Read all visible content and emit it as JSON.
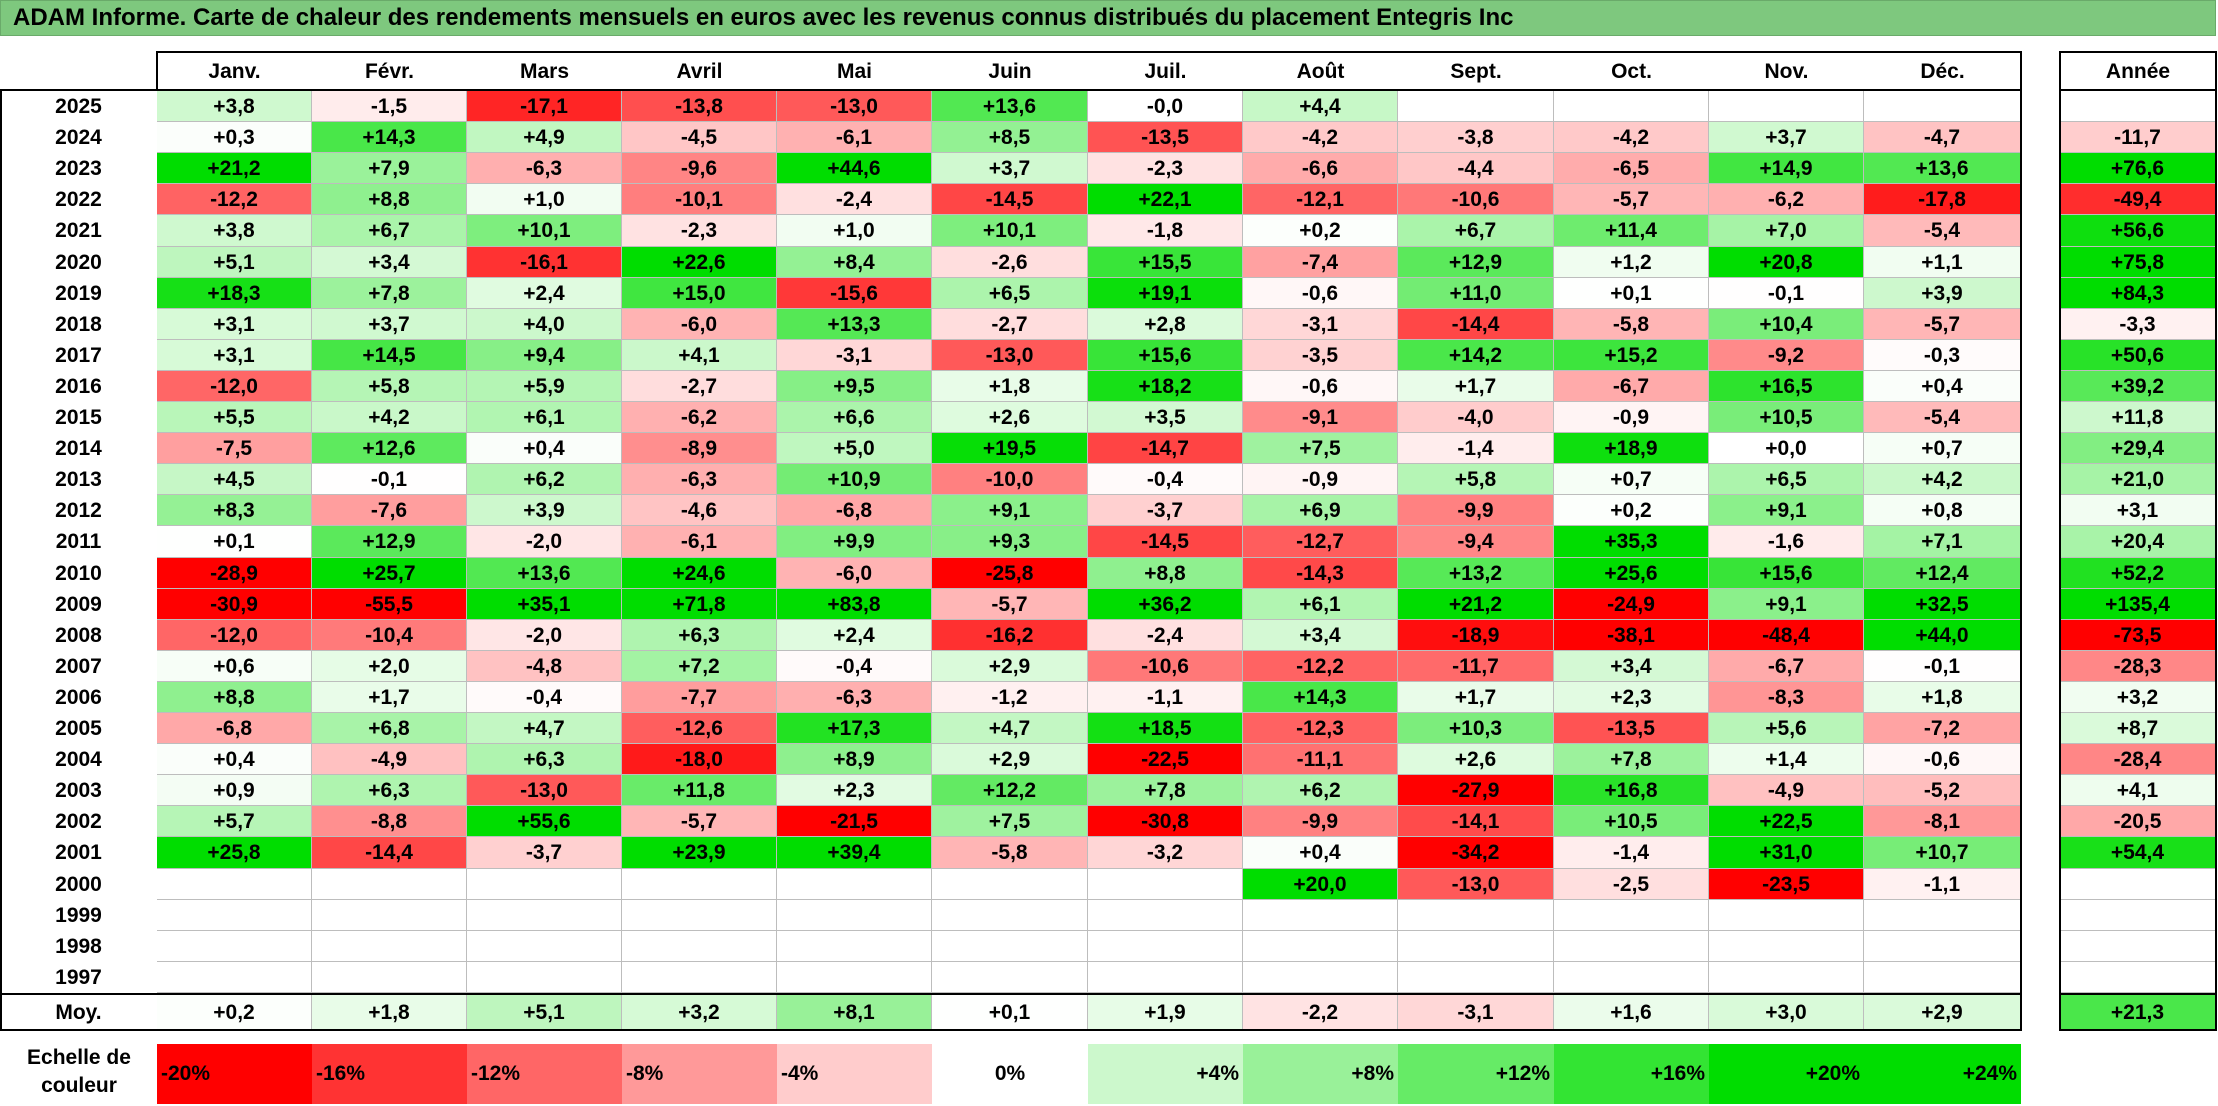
{
  "title": "ADAM Informe. Carte de chaleur des rendements mensuels en euros avec les revenus connus distribués du placement Entegris Inc",
  "chart_data": {
    "type": "heatmap",
    "title": "ADAM Informe. Carte de chaleur des rendements mensuels en euros avec les revenus connus distribués du placement Entegris Inc",
    "columns": [
      "Janv.",
      "Févr.",
      "Mars",
      "Avril",
      "Mai",
      "Juin",
      "Juil.",
      "Août",
      "Sept.",
      "Oct.",
      "Nov.",
      "Déc."
    ],
    "year_header": "Année",
    "rows": [
      {
        "year": "2025",
        "values": [
          "+3,8",
          "-1,5",
          "-17,1",
          "-13,8",
          "-13,0",
          "+13,6",
          "-0,0",
          "+4,4",
          "",
          "",
          "",
          ""
        ],
        "annual": ""
      },
      {
        "year": "2024",
        "values": [
          "+0,3",
          "+14,3",
          "+4,9",
          "-4,5",
          "-6,1",
          "+8,5",
          "-13,5",
          "-4,2",
          "-3,8",
          "-4,2",
          "+3,7",
          "-4,7"
        ],
        "annual": "-11,7"
      },
      {
        "year": "2023",
        "values": [
          "+21,2",
          "+7,9",
          "-6,3",
          "-9,6",
          "+44,6",
          "+3,7",
          "-2,3",
          "-6,6",
          "-4,4",
          "-6,5",
          "+14,9",
          "+13,6"
        ],
        "annual": "+76,6"
      },
      {
        "year": "2022",
        "values": [
          "-12,2",
          "+8,8",
          "+1,0",
          "-10,1",
          "-2,4",
          "-14,5",
          "+22,1",
          "-12,1",
          "-10,6",
          "-5,7",
          "-6,2",
          "-17,8"
        ],
        "annual": "-49,4"
      },
      {
        "year": "2021",
        "values": [
          "+3,8",
          "+6,7",
          "+10,1",
          "-2,3",
          "+1,0",
          "+10,1",
          "-1,8",
          "+0,2",
          "+6,7",
          "+11,4",
          "+7,0",
          "-5,4"
        ],
        "annual": "+56,6"
      },
      {
        "year": "2020",
        "values": [
          "+5,1",
          "+3,4",
          "-16,1",
          "+22,6",
          "+8,4",
          "-2,6",
          "+15,5",
          "-7,4",
          "+12,9",
          "+1,2",
          "+20,8",
          "+1,1"
        ],
        "annual": "+75,8"
      },
      {
        "year": "2019",
        "values": [
          "+18,3",
          "+7,8",
          "+2,4",
          "+15,0",
          "-15,6",
          "+6,5",
          "+19,1",
          "-0,6",
          "+11,0",
          "+0,1",
          "-0,1",
          "+3,9"
        ],
        "annual": "+84,3"
      },
      {
        "year": "2018",
        "values": [
          "+3,1",
          "+3,7",
          "+4,0",
          "-6,0",
          "+13,3",
          "-2,7",
          "+2,8",
          "-3,1",
          "-14,4",
          "-5,8",
          "+10,4",
          "-5,7"
        ],
        "annual": "-3,3"
      },
      {
        "year": "2017",
        "values": [
          "+3,1",
          "+14,5",
          "+9,4",
          "+4,1",
          "-3,1",
          "-13,0",
          "+15,6",
          "-3,5",
          "+14,2",
          "+15,2",
          "-9,2",
          "-0,3"
        ],
        "annual": "+50,6"
      },
      {
        "year": "2016",
        "values": [
          "-12,0",
          "+5,8",
          "+5,9",
          "-2,7",
          "+9,5",
          "+1,8",
          "+18,2",
          "-0,6",
          "+1,7",
          "-6,7",
          "+16,5",
          "+0,4"
        ],
        "annual": "+39,2"
      },
      {
        "year": "2015",
        "values": [
          "+5,5",
          "+4,2",
          "+6,1",
          "-6,2",
          "+6,6",
          "+2,6",
          "+3,5",
          "-9,1",
          "-4,0",
          "-0,9",
          "+10,5",
          "-5,4"
        ],
        "annual": "+11,8"
      },
      {
        "year": "2014",
        "values": [
          "-7,5",
          "+12,6",
          "+0,4",
          "-8,9",
          "+5,0",
          "+19,5",
          "-14,7",
          "+7,5",
          "-1,4",
          "+18,9",
          "+0,0",
          "+0,7"
        ],
        "annual": "+29,4"
      },
      {
        "year": "2013",
        "values": [
          "+4,5",
          "-0,1",
          "+6,2",
          "-6,3",
          "+10,9",
          "-10,0",
          "-0,4",
          "-0,9",
          "+5,8",
          "+0,7",
          "+6,5",
          "+4,2"
        ],
        "annual": "+21,0"
      },
      {
        "year": "2012",
        "values": [
          "+8,3",
          "-7,6",
          "+3,9",
          "-4,6",
          "-6,8",
          "+9,1",
          "-3,7",
          "+6,9",
          "-9,9",
          "+0,2",
          "+9,1",
          "+0,8"
        ],
        "annual": "+3,1"
      },
      {
        "year": "2011",
        "values": [
          "+0,1",
          "+12,9",
          "-2,0",
          "-6,1",
          "+9,9",
          "+9,3",
          "-14,5",
          "-12,7",
          "-9,4",
          "+35,3",
          "-1,6",
          "+7,1"
        ],
        "annual": "+20,4"
      },
      {
        "year": "2010",
        "values": [
          "-28,9",
          "+25,7",
          "+13,6",
          "+24,6",
          "-6,0",
          "-25,8",
          "+8,8",
          "-14,3",
          "+13,2",
          "+25,6",
          "+15,6",
          "+12,4"
        ],
        "annual": "+52,2"
      },
      {
        "year": "2009",
        "values": [
          "-30,9",
          "-55,5",
          "+35,1",
          "+71,8",
          "+83,8",
          "-5,7",
          "+36,2",
          "+6,1",
          "+21,2",
          "-24,9",
          "+9,1",
          "+32,5"
        ],
        "annual": "+135,4"
      },
      {
        "year": "2008",
        "values": [
          "-12,0",
          "-10,4",
          "-2,0",
          "+6,3",
          "+2,4",
          "-16,2",
          "-2,4",
          "+3,4",
          "-18,9",
          "-38,1",
          "-48,4",
          "+44,0"
        ],
        "annual": "-73,5"
      },
      {
        "year": "2007",
        "values": [
          "+0,6",
          "+2,0",
          "-4,8",
          "+7,2",
          "-0,4",
          "+2,9",
          "-10,6",
          "-12,2",
          "-11,7",
          "+3,4",
          "-6,7",
          "-0,1"
        ],
        "annual": "-28,3"
      },
      {
        "year": "2006",
        "values": [
          "+8,8",
          "+1,7",
          "-0,4",
          "-7,7",
          "-6,3",
          "-1,2",
          "-1,1",
          "+14,3",
          "+1,7",
          "+2,3",
          "-8,3",
          "+1,8"
        ],
        "annual": "+3,2"
      },
      {
        "year": "2005",
        "values": [
          "-6,8",
          "+6,8",
          "+4,7",
          "-12,6",
          "+17,3",
          "+4,7",
          "+18,5",
          "-12,3",
          "+10,3",
          "-13,5",
          "+5,6",
          "-7,2"
        ],
        "annual": "+8,7"
      },
      {
        "year": "2004",
        "values": [
          "+0,4",
          "-4,9",
          "+6,3",
          "-18,0",
          "+8,9",
          "+2,9",
          "-22,5",
          "-11,1",
          "+2,6",
          "+7,8",
          "+1,4",
          "-0,6"
        ],
        "annual": "-28,4"
      },
      {
        "year": "2003",
        "values": [
          "+0,9",
          "+6,3",
          "-13,0",
          "+11,8",
          "+2,3",
          "+12,2",
          "+7,8",
          "+6,2",
          "-27,9",
          "+16,8",
          "-4,9",
          "-5,2"
        ],
        "annual": "+4,1"
      },
      {
        "year": "2002",
        "values": [
          "+5,7",
          "-8,8",
          "+55,6",
          "-5,7",
          "-21,5",
          "+7,5",
          "-30,8",
          "-9,9",
          "-14,1",
          "+10,5",
          "+22,5",
          "-8,1"
        ],
        "annual": "-20,5"
      },
      {
        "year": "2001",
        "values": [
          "+25,8",
          "-14,4",
          "-3,7",
          "+23,9",
          "+39,4",
          "-5,8",
          "-3,2",
          "+0,4",
          "-34,2",
          "-1,4",
          "+31,0",
          "+10,7"
        ],
        "annual": "+54,4"
      },
      {
        "year": "2000",
        "values": [
          "",
          "",
          "",
          "",
          "",
          "",
          "",
          "+20,0",
          "-13,0",
          "-2,5",
          "-23,5",
          "-1,1"
        ],
        "annual": ""
      },
      {
        "year": "1999",
        "values": [
          "",
          "",
          "",
          "",
          "",
          "",
          "",
          "",
          "",
          "",
          "",
          ""
        ],
        "annual": ""
      },
      {
        "year": "1998",
        "values": [
          "",
          "",
          "",
          "",
          "",
          "",
          "",
          "",
          "",
          "",
          "",
          ""
        ],
        "annual": ""
      },
      {
        "year": "1997",
        "values": [
          "",
          "",
          "",
          "",
          "",
          "",
          "",
          "",
          "",
          "",
          "",
          ""
        ],
        "annual": ""
      }
    ],
    "average_label": "Moy.",
    "average": [
      "+0,2",
      "+1,8",
      "+5,1",
      "+3,2",
      "+8,1",
      "+0,1",
      "+1,9",
      "-2,2",
      "-3,1",
      "+1,6",
      "+3,0",
      "+2,9"
    ],
    "average_annual": "+21,3",
    "scale_label": "Echelle de couleur",
    "scale": [
      "-20%",
      "-16%",
      "-12%",
      "-8%",
      "-4%",
      "0%",
      "+4%",
      "+8%",
      "+12%",
      "+16%",
      "+20%",
      "+24%"
    ],
    "colors": {
      "title_bg": "#7ec87e",
      "negative_max": "#ff0000",
      "zero": "#ffffff",
      "positive_max": "#00dd00"
    }
  }
}
